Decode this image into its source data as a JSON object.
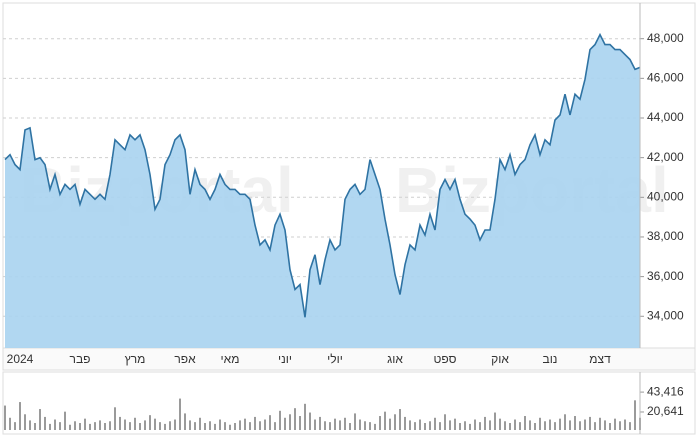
{
  "watermark": "Bizportal",
  "chart_data": [
    {
      "type": "area",
      "color": "#2f73a3",
      "fill": "#a8d3f0",
      "categories": [
        null,
        null,
        null,
        "2024",
        null,
        null,
        null,
        null,
        null,
        null,
        null,
        null,
        null,
        null,
        null,
        "פבר",
        null,
        null,
        null,
        null,
        null,
        null,
        null,
        null,
        null,
        null,
        "מרץ",
        null,
        null,
        null,
        null,
        null,
        null,
        null,
        null,
        null,
        "אפר",
        null,
        null,
        null,
        null,
        null,
        null,
        null,
        null,
        "מאי",
        null,
        null,
        null,
        null,
        null,
        null,
        null,
        null,
        null,
        null,
        "יוני",
        null,
        null,
        null,
        null,
        null,
        null,
        null,
        null,
        null,
        "יולי",
        null,
        null,
        null,
        null,
        null,
        null,
        null,
        null,
        null,
        null,
        null,
        "אוג",
        null,
        null,
        null,
        null,
        null,
        null,
        null,
        null,
        null,
        "ספט",
        null,
        null,
        null,
        null,
        null,
        null,
        null,
        null,
        null,
        null,
        "אוק",
        null,
        null,
        null,
        null,
        null,
        null,
        null,
        null,
        null,
        "נוב",
        null,
        null,
        null,
        null,
        null,
        null,
        null,
        null,
        null,
        "דצמ",
        null,
        null,
        null,
        null,
        null,
        null,
        null,
        null
      ],
      "values": [
        41900,
        42150,
        41650,
        41400,
        43400,
        43500,
        41900,
        42000,
        41650,
        40400,
        41150,
        40150,
        40650,
        40400,
        40650,
        39650,
        40400,
        40150,
        39900,
        40150,
        39900,
        41150,
        42900,
        42650,
        42400,
        43150,
        42900,
        43150,
        42400,
        41150,
        39400,
        39900,
        41650,
        42150,
        42900,
        43150,
        42400,
        40150,
        41400,
        40650,
        40400,
        39900,
        40400,
        41150,
        40650,
        40400,
        40400,
        40150,
        40150,
        39900,
        38600,
        37600,
        37850,
        37350,
        38600,
        39150,
        38350,
        36350,
        35350,
        35600,
        33950,
        36350,
        37100,
        35600,
        36850,
        37850,
        37350,
        37600,
        39900,
        40400,
        40650,
        40150,
        40400,
        41900,
        41150,
        40400,
        38900,
        37600,
        36100,
        35100,
        36600,
        37600,
        37350,
        38600,
        38100,
        39150,
        38350,
        40400,
        40900,
        40400,
        40900,
        39900,
        39150,
        38900,
        38600,
        37850,
        38350,
        38350,
        39900,
        41900,
        41400,
        42150,
        41150,
        41650,
        41900,
        42650,
        43150,
        42150,
        42900,
        42650,
        43900,
        44150,
        45200,
        44150,
        45200,
        44950,
        45950,
        47450,
        47700,
        48200,
        47700,
        47700,
        47450,
        47450,
        47200,
        46950,
        46450,
        46550
      ],
      "ylim": [
        32400,
        49800
      ],
      "yticks": [
        {
          "value": 34000,
          "label": "34,000"
        },
        {
          "value": 36000,
          "label": "36,000"
        },
        {
          "value": 38000,
          "label": "38,000"
        },
        {
          "value": 40000,
          "label": "40,000"
        },
        {
          "value": 42000,
          "label": "42,000"
        },
        {
          "value": 44000,
          "label": "44,000"
        },
        {
          "value": 46000,
          "label": "46,000"
        },
        {
          "value": 48000,
          "label": "48,000"
        }
      ],
      "grid": true
    },
    {
      "type": "bar",
      "color": "#9a9a9a",
      "values": [
        28000,
        14000,
        9000,
        32000,
        18000,
        11000,
        8000,
        24000,
        15000,
        7000,
        12000,
        9000,
        21000,
        6000,
        10000,
        8000,
        13000,
        7000,
        9000,
        11000,
        8000,
        10000,
        26000,
        15000,
        12000,
        9000,
        14000,
        8000,
        11000,
        17000,
        13000,
        9000,
        7000,
        10000,
        12000,
        36000,
        19000,
        11000,
        9000,
        14000,
        8000,
        10000,
        7000,
        12000,
        9000,
        6000,
        8000,
        11000,
        13000,
        9000,
        15000,
        10000,
        12000,
        17000,
        9000,
        22000,
        14000,
        18000,
        25000,
        16000,
        30000,
        20000,
        12000,
        15000,
        10000,
        9000,
        13000,
        11000,
        14000,
        8000,
        19000,
        12000,
        10000,
        9000,
        7000,
        16000,
        21000,
        13000,
        18000,
        24000,
        15000,
        11000,
        9000,
        12000,
        8000,
        10000,
        14000,
        9000,
        18000,
        11000,
        13000,
        8000,
        10000,
        7000,
        12000,
        9000,
        15000,
        11000,
        20000,
        13000,
        10000,
        8000,
        12000,
        9000,
        16000,
        11000,
        8000,
        14000,
        10000,
        12000,
        9000,
        13000,
        18000,
        11000,
        16000,
        10000,
        12000,
        15000,
        9000,
        14000,
        11000,
        8000,
        13000,
        10000,
        12000,
        9000,
        34000,
        14000
      ],
      "ylim": [
        0,
        63000
      ],
      "yticks": [
        {
          "value": 20641,
          "label": "20,641"
        },
        {
          "value": 43416,
          "label": "43,416"
        }
      ],
      "grid": false
    }
  ]
}
